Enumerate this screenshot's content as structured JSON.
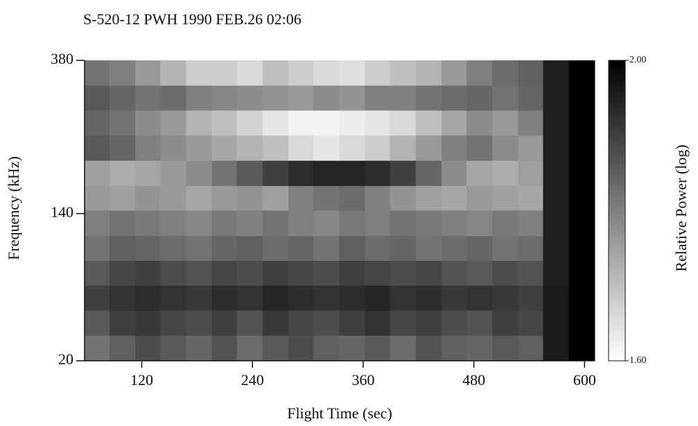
{
  "chart_data": {
    "type": "heatmap",
    "title": "S-520-12 PWH   1990 FEB.26 02:06",
    "xlabel": "Flight Time (sec)",
    "ylabel": "Frequency (kHz)",
    "colorbar_label": "Relative Power (log)",
    "xlim": [
      58,
      611
    ],
    "xticks": [
      120,
      240,
      360,
      480,
      600
    ],
    "ylim": [
      20,
      380
    ],
    "yticks": [
      20,
      140,
      380
    ],
    "yscale": "sqrt",
    "clim": [
      1.6,
      2.0
    ],
    "cticks": [
      {
        "value": 2.0,
        "label": "2.00"
      },
      {
        "value": 1.6,
        "label": "1.60"
      }
    ],
    "colorscale": [
      "#ffffff",
      "#000000"
    ],
    "xbins": [
      58,
      85,
      113,
      140,
      168,
      196,
      223,
      251,
      279,
      306,
      334,
      362,
      389,
      417,
      445,
      472,
      500,
      528,
      555,
      583,
      611
    ],
    "ybins": [
      20,
      33,
      49,
      68,
      90,
      115,
      144,
      175,
      210,
      248,
      289,
      333,
      380
    ],
    "z": [
      [
        1.82,
        1.85,
        1.88,
        1.86,
        1.84,
        1.87,
        1.83,
        1.86,
        1.88,
        1.85,
        1.84,
        1.86,
        1.83,
        1.87,
        1.85,
        1.84,
        1.86,
        1.85,
        1.96,
        2.0
      ],
      [
        1.86,
        1.9,
        1.91,
        1.89,
        1.88,
        1.9,
        1.87,
        1.91,
        1.89,
        1.88,
        1.9,
        1.92,
        1.89,
        1.9,
        1.88,
        1.87,
        1.9,
        1.89,
        1.96,
        2.0
      ],
      [
        1.9,
        1.92,
        1.93,
        1.92,
        1.91,
        1.93,
        1.92,
        1.94,
        1.93,
        1.92,
        1.93,
        1.94,
        1.92,
        1.93,
        1.91,
        1.92,
        1.91,
        1.9,
        1.96,
        2.0
      ],
      [
        1.86,
        1.89,
        1.9,
        1.88,
        1.87,
        1.89,
        1.88,
        1.9,
        1.89,
        1.88,
        1.9,
        1.89,
        1.88,
        1.89,
        1.87,
        1.86,
        1.88,
        1.87,
        1.95,
        2.0
      ],
      [
        1.82,
        1.85,
        1.84,
        1.83,
        1.82,
        1.84,
        1.85,
        1.83,
        1.84,
        1.82,
        1.85,
        1.83,
        1.84,
        1.82,
        1.83,
        1.84,
        1.82,
        1.83,
        1.95,
        2.0
      ],
      [
        1.8,
        1.82,
        1.81,
        1.8,
        1.79,
        1.81,
        1.8,
        1.82,
        1.8,
        1.79,
        1.81,
        1.8,
        1.82,
        1.81,
        1.8,
        1.79,
        1.81,
        1.8,
        1.95,
        2.0
      ],
      [
        1.76,
        1.75,
        1.77,
        1.76,
        1.74,
        1.76,
        1.77,
        1.75,
        1.8,
        1.82,
        1.83,
        1.8,
        1.77,
        1.75,
        1.74,
        1.76,
        1.75,
        1.74,
        1.95,
        2.0
      ],
      [
        1.75,
        1.73,
        1.74,
        1.76,
        1.78,
        1.82,
        1.86,
        1.9,
        1.93,
        1.94,
        1.94,
        1.93,
        1.9,
        1.84,
        1.78,
        1.74,
        1.73,
        1.75,
        1.95,
        2.0
      ],
      [
        1.86,
        1.84,
        1.8,
        1.78,
        1.76,
        1.74,
        1.72,
        1.7,
        1.66,
        1.64,
        1.66,
        1.68,
        1.72,
        1.76,
        1.8,
        1.82,
        1.78,
        1.76,
        1.95,
        2.0
      ],
      [
        1.84,
        1.82,
        1.78,
        1.76,
        1.72,
        1.7,
        1.67,
        1.64,
        1.62,
        1.62,
        1.63,
        1.64,
        1.66,
        1.7,
        1.74,
        1.78,
        1.76,
        1.8,
        1.95,
        2.0
      ],
      [
        1.86,
        1.84,
        1.82,
        1.83,
        1.8,
        1.79,
        1.78,
        1.77,
        1.76,
        1.78,
        1.77,
        1.8,
        1.8,
        1.82,
        1.83,
        1.84,
        1.82,
        1.84,
        1.95,
        2.0
      ],
      [
        1.82,
        1.8,
        1.76,
        1.72,
        1.68,
        1.68,
        1.66,
        1.7,
        1.68,
        1.66,
        1.65,
        1.68,
        1.7,
        1.72,
        1.76,
        1.8,
        1.83,
        1.85,
        1.95,
        2.0
      ]
    ]
  }
}
